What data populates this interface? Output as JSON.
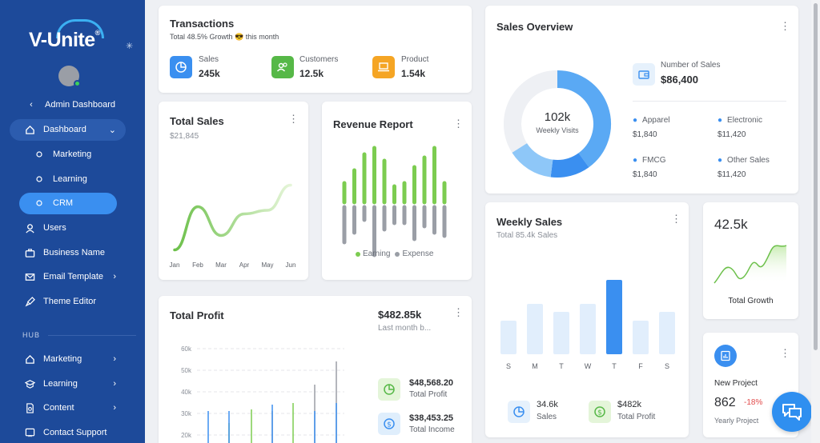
{
  "sidebar": {
    "logo": "V-Unite",
    "logo_mark": "®",
    "items": [
      {
        "label": "Admin Dashboard",
        "icon": "chevron-left-icon"
      },
      {
        "label": "Dashboard",
        "icon": "home-icon"
      },
      {
        "label": "Marketing",
        "icon": "circle-icon"
      },
      {
        "label": "Learning",
        "icon": "circle-icon"
      },
      {
        "label": "CRM",
        "icon": "circle-icon"
      },
      {
        "label": "Users",
        "icon": "user-icon"
      },
      {
        "label": "Business Name",
        "icon": "briefcase-icon"
      },
      {
        "label": "Email Template",
        "icon": "mail-icon"
      },
      {
        "label": "Theme Editor",
        "icon": "brush-icon"
      }
    ],
    "hub_label": "HUB",
    "hub_items": [
      {
        "label": "Marketing",
        "icon": "home-icon"
      },
      {
        "label": "Learning",
        "icon": "graduation-icon"
      },
      {
        "label": "Content",
        "icon": "document-icon"
      },
      {
        "label": "Contact Support",
        "icon": "help-icon"
      }
    ]
  },
  "transactions": {
    "title": "Transactions",
    "subtitle_bold": "Total 48.5% Growth",
    "subtitle_emoji": "😎",
    "subtitle_rest": "this month",
    "stats": [
      {
        "label": "Sales",
        "value": "245k",
        "color": "#3a8ff0"
      },
      {
        "label": "Customers",
        "value": "12.5k",
        "color": "#56b847"
      },
      {
        "label": "Product",
        "value": "1.54k",
        "color": "#f5a524"
      }
    ]
  },
  "total_sales": {
    "title": "Total Sales",
    "value": "$21,845",
    "chart_data": {
      "type": "line",
      "x": [
        "Jan",
        "Feb",
        "Mar",
        "Apr",
        "May",
        "Jun"
      ],
      "series": [
        {
          "values": [
            0.05,
            0.65,
            0.25,
            0.55,
            0.6,
            0.95
          ]
        }
      ]
    }
  },
  "revenue_report": {
    "title": "Revenue Report",
    "legend": [
      "Earning",
      "Expense"
    ],
    "colors": {
      "earning": "#7ccc50",
      "expense": "#9a9ea6"
    },
    "chart_data": {
      "type": "bar",
      "series": [
        {
          "name": "Earning",
          "values": [
            12,
            20,
            30,
            34,
            26,
            10,
            12,
            22,
            28,
            34,
            12
          ]
        },
        {
          "name": "Expense",
          "values": [
            22,
            16,
            8,
            30,
            14,
            10,
            10,
            20,
            12,
            16,
            18
          ]
        }
      ]
    }
  },
  "sales_overview": {
    "title": "Sales Overview",
    "donut_value": "102k",
    "donut_label": "Weekly Visits",
    "number_label": "Number of Sales",
    "number_value": "$86,400",
    "chart_data": {
      "type": "pie",
      "values": [
        40,
        12,
        14,
        34
      ]
    },
    "items": [
      {
        "label": "Apparel",
        "value": "$1,840"
      },
      {
        "label": "Electronic",
        "value": "$11,420"
      },
      {
        "label": "FMCG",
        "value": "$1,840"
      },
      {
        "label": "Other Sales",
        "value": "$11,420"
      }
    ]
  },
  "weekly_sales": {
    "title": "Weekly Sales",
    "subtitle": "Total 85.4k Sales",
    "chart_data": {
      "type": "bar",
      "categories": [
        "S",
        "M",
        "T",
        "W",
        "T",
        "F",
        "S"
      ],
      "values": [
        42,
        63,
        53,
        63,
        93,
        42,
        53
      ],
      "ylim": [
        0,
        100
      ],
      "highlight_index": 4
    },
    "footer": [
      {
        "value": "34.6k",
        "label": "Sales"
      },
      {
        "value": "$482k",
        "label": "Total Profit"
      }
    ]
  },
  "total_growth": {
    "value": "42.5k",
    "label": "Total Growth"
  },
  "new_project": {
    "title": "New Project",
    "value": "862",
    "change": "-18%",
    "label": "Yearly Project"
  },
  "total_profit": {
    "title": "Total Profit",
    "amount": "$482.85k",
    "caption": "Last month b...",
    "stats": [
      {
        "value": "$48,568.20",
        "label": "Total Profit"
      },
      {
        "value": "$38,453.25",
        "label": "Total Income"
      }
    ],
    "chart_data": {
      "type": "bar",
      "y_ticks": [
        "60k",
        "50k",
        "40k",
        "30k",
        "20k"
      ]
    }
  }
}
